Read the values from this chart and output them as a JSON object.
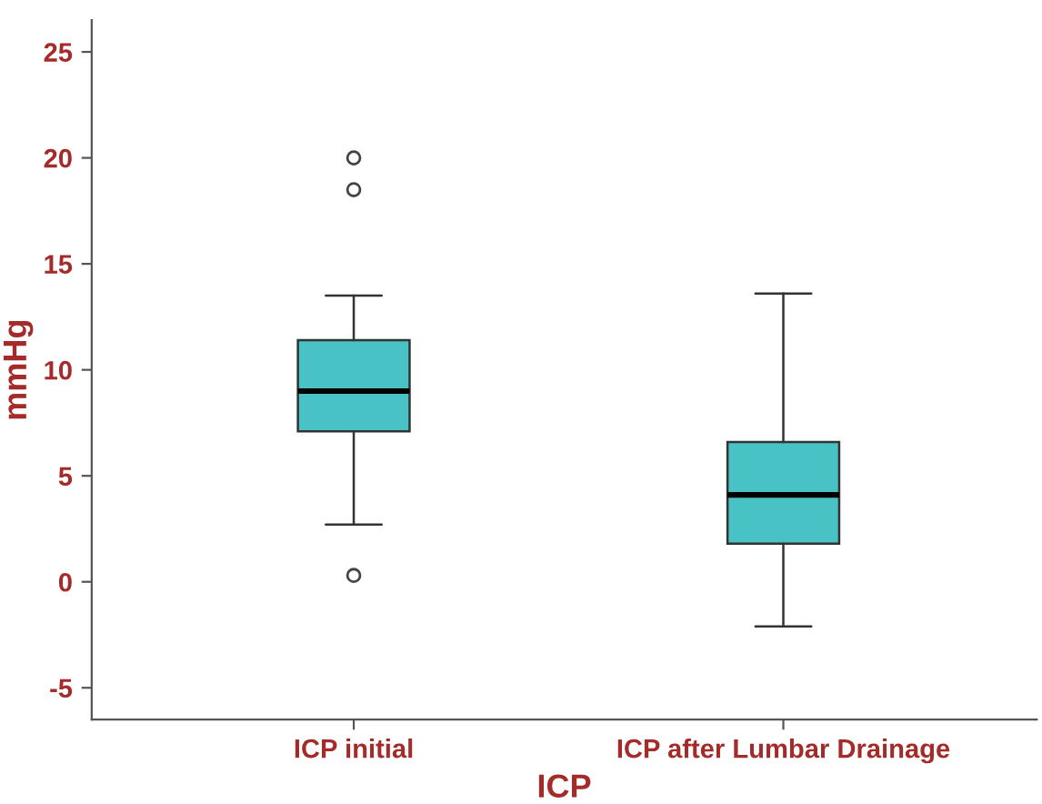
{
  "chart_data": {
    "type": "box",
    "xlabel": "ICP",
    "ylabel": "mmHg",
    "categories": [
      "ICP initial",
      "ICP after Lumbar Drainage"
    ],
    "boxes": [
      {
        "low": 2.7,
        "q1": 7.1,
        "median": 9.0,
        "q3": 11.4,
        "high": 13.5,
        "outliers": [
          20.0,
          18.5,
          0.3
        ]
      },
      {
        "low": -2.1,
        "q1": 1.8,
        "median": 4.1,
        "q3": 6.6,
        "high": 13.6
      }
    ],
    "color": "#48c2c5",
    "ylim": [
      -6.5,
      26.5
    ],
    "yticks": [
      -5,
      0,
      5,
      10,
      15,
      20,
      25
    ],
    "grid": false,
    "legend": false
  }
}
